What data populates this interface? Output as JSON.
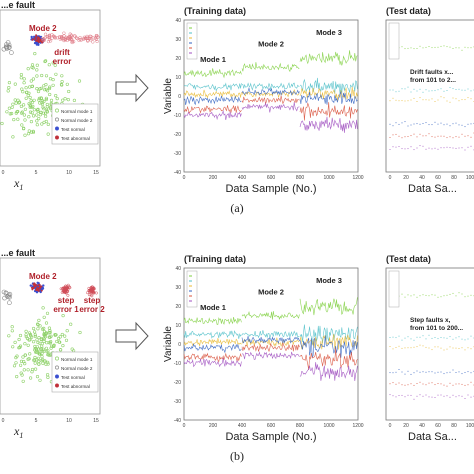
{
  "panels": [
    {
      "label": "(a)",
      "scatter": {
        "title": "...e fault",
        "mode2_label": "Mode 2",
        "annotations": [
          "drift",
          "error"
        ],
        "legend": [
          "Normal mode 1",
          "Normal mode 2",
          "Test normal",
          "Test abnormal"
        ],
        "xlabel": "x1",
        "xticks": [
          "0",
          "5",
          "10",
          "15"
        ]
      },
      "training": {
        "title": "(Training data)",
        "ylabel": "Variable",
        "xlabel": "Data Sample (No.)",
        "yticks": [
          "40",
          "30",
          "20",
          "10",
          "0",
          "-10",
          "-20",
          "-30",
          "-40"
        ],
        "xticks": [
          "0",
          "200",
          "400",
          "600",
          "800",
          "1000",
          "1200"
        ],
        "mode_labels": [
          "Mode 1",
          "Mode 2",
          "Mode 3"
        ]
      },
      "test": {
        "title": "(Test data)",
        "xlabel": "Data Sa...",
        "annotation": [
          "Drift faults x...",
          "from 101 to 2..."
        ],
        "xticks": [
          "0",
          "20",
          "40",
          "60",
          "80",
          "100"
        ]
      }
    },
    {
      "label": "(b)",
      "scatter": {
        "title": "...e fault",
        "mode2_label": "Mode 2",
        "annotations": [
          "step",
          "error 1",
          "step",
          "error 2"
        ],
        "legend": [
          "Normal mode 1",
          "Normal mode 2",
          "Test normal",
          "Test abnormal"
        ],
        "xlabel": "x1",
        "xticks": [
          "0",
          "5",
          "10",
          "15"
        ]
      },
      "training": {
        "title": "(Training data)",
        "ylabel": "Variable",
        "xlabel": "Data Sample (No.)",
        "yticks": [
          "40",
          "30",
          "20",
          "10",
          "0",
          "-10",
          "-20",
          "-30",
          "-40"
        ],
        "xticks": [
          "0",
          "200",
          "400",
          "600",
          "800",
          "1000",
          "1200"
        ],
        "mode_labels": [
          "Mode 1",
          "Mode 2",
          "Mode 3"
        ]
      },
      "test": {
        "title": "(Test data)",
        "xlabel": "Data Sa...",
        "annotation": [
          "Step faults x,",
          "from 101 to 200..."
        ],
        "xticks": [
          "0",
          "20",
          "40",
          "60",
          "80",
          "100"
        ]
      }
    }
  ],
  "chart_data": [
    {
      "type": "line",
      "title": "(Training data)",
      "xlabel": "Data Sample (No.)",
      "ylabel": "Variable",
      "xlim": [
        0,
        1200
      ],
      "ylim": [
        -40,
        40
      ],
      "series": [
        {
          "segments": [
            [
              0,
              400,
              12
            ],
            [
              400,
              800,
              15
            ],
            [
              800,
              1200,
              20
            ]
          ],
          "color": "#7fcf3f"
        },
        {
          "segments": [
            [
              0,
              400,
              5
            ],
            [
              400,
              800,
              5
            ],
            [
              800,
              1200,
              5
            ]
          ],
          "color": "#4fbfc8"
        },
        {
          "segments": [
            [
              0,
              400,
              1
            ],
            [
              400,
              800,
              1
            ],
            [
              800,
              1200,
              1
            ]
          ],
          "color": "#e8b830"
        },
        {
          "segments": [
            [
              0,
              400,
              -2
            ],
            [
              400,
              800,
              2
            ],
            [
              800,
              1200,
              -1
            ]
          ],
          "color": "#3060c0"
        },
        {
          "segments": [
            [
              0,
              400,
              -7
            ],
            [
              400,
              800,
              -2
            ],
            [
              800,
              1200,
              -8
            ]
          ],
          "color": "#d8503a"
        },
        {
          "segments": [
            [
              0,
              400,
              -10
            ],
            [
              400,
              800,
              -6
            ],
            [
              800,
              1200,
              -15
            ]
          ],
          "color": "#a050c0"
        }
      ]
    },
    {
      "type": "line",
      "title": "(Training data)",
      "xlabel": "Data Sample (No.)",
      "ylabel": "Variable",
      "xlim": [
        0,
        1200
      ],
      "ylim": [
        -40,
        40
      ],
      "series": [
        {
          "segments": [
            [
              0,
              400,
              12
            ],
            [
              400,
              800,
              15
            ],
            [
              800,
              1200,
              20
            ]
          ],
          "color": "#7fcf3f"
        },
        {
          "segments": [
            [
              0,
              400,
              5
            ],
            [
              400,
              800,
              5
            ],
            [
              800,
              1200,
              5
            ]
          ],
          "color": "#4fbfc8"
        },
        {
          "segments": [
            [
              0,
              400,
              1
            ],
            [
              400,
              800,
              1
            ],
            [
              800,
              1200,
              1
            ]
          ],
          "color": "#e8b830"
        },
        {
          "segments": [
            [
              0,
              400,
              -2
            ],
            [
              400,
              800,
              2
            ],
            [
              800,
              1200,
              -1
            ]
          ],
          "color": "#3060c0"
        },
        {
          "segments": [
            [
              0,
              400,
              -7
            ],
            [
              400,
              800,
              -2
            ],
            [
              800,
              1200,
              -8
            ]
          ],
          "color": "#d8503a"
        },
        {
          "segments": [
            [
              0,
              400,
              -10
            ],
            [
              400,
              800,
              -6
            ],
            [
              800,
              1200,
              -15
            ]
          ],
          "color": "#a050c0"
        }
      ]
    }
  ],
  "colors": {
    "normal_mode1": "#8fd16a",
    "normal_mode2": "#888888",
    "test_normal": "#3a4fd0",
    "test_abnormal": "#c0303a",
    "axis": "#555555"
  }
}
